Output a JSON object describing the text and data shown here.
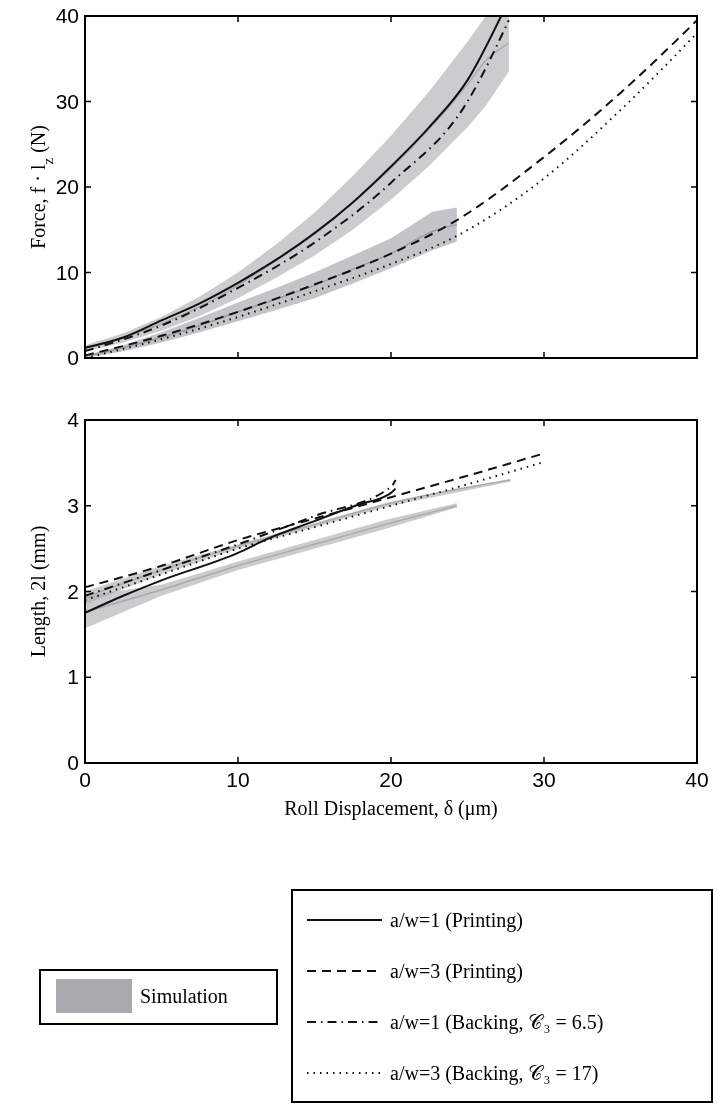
{
  "chart_data": [
    {
      "type": "line",
      "ylabel": "Force, f · l$_{z}$ (N)",
      "xlim": [
        0,
        40
      ],
      "xticks": [
        0,
        10,
        20,
        30,
        40
      ],
      "ylim": [
        0,
        40
      ],
      "yticks": [
        0,
        10,
        20,
        30,
        40
      ],
      "tick_labels": "y",
      "grid": false,
      "legend": "bottom",
      "series": [
        {
          "name": "Simulation",
          "type": "line",
          "color": "#a9aaae",
          "x": [
            0,
            2.5,
            5,
            7.5,
            10,
            12.5,
            15,
            17.5,
            20,
            22.5,
            25,
            26.2,
            27.7
          ],
          "values": [
            1.2,
            2.4,
            4,
            6,
            8.5,
            11.4,
            14.5,
            18.2,
            22.2,
            26.8,
            32,
            34.8,
            36.8
          ],
          "lower": [
            0.8,
            1.8,
            3.2,
            4.9,
            7,
            9.4,
            12,
            15,
            18.5,
            22.5,
            27,
            29.5,
            33.5
          ],
          "upper": [
            1.5,
            2.9,
            4.8,
            7.2,
            10,
            13.3,
            17,
            21.3,
            26,
            31.2,
            37,
            40,
            40
          ]
        },
        {
          "type": "line",
          "color": "#9c9da3",
          "x": [
            0,
            2.5,
            5,
            7.5,
            10,
            12.5,
            15,
            17.5,
            20,
            22.7,
            24.3
          ],
          "values": [
            0.2,
            1.2,
            2.4,
            3.8,
            5.4,
            6.9,
            8.5,
            10.4,
            12.2,
            14.8,
            15.6
          ],
          "lower": [
            0,
            0.8,
            1.8,
            3,
            4.3,
            5.6,
            7,
            8.7,
            10.5,
            12.6,
            13.6
          ],
          "upper": [
            0.3,
            1.5,
            3,
            4.7,
            6.5,
            8.2,
            10,
            12,
            14,
            17.1,
            17.6
          ]
        },
        {
          "name": "a/w=1 (Printing)",
          "color": "#111111",
          "line_style": "solid",
          "x": [
            0,
            2.5,
            5,
            7.5,
            10,
            12.5,
            15,
            17.5,
            20,
            22.5,
            25,
            27.2
          ],
          "values": [
            1.2,
            2.4,
            4.4,
            6.4,
            8.8,
            11.5,
            14.6,
            18.2,
            22.4,
            27,
            32.5,
            40
          ]
        },
        {
          "name": "a/w=3 (Printing)",
          "color": "#111111",
          "line_style": "dashed",
          "x": [
            0,
            5,
            10,
            15,
            20,
            24,
            30,
            35,
            40
          ],
          "values": [
            0.3,
            2.6,
            5.4,
            8.6,
            12.2,
            15.8,
            23.5,
            31,
            39.5
          ]
        },
        {
          "name": "a/w=1 (Backing, 𝒞₃ = 6.5)",
          "color": "#111111",
          "line_style": "dashdot",
          "x": [
            0,
            5,
            10,
            15,
            20,
            25,
            27.7
          ],
          "values": [
            0.8,
            3.8,
            8.2,
            13.5,
            20.5,
            30,
            39.5
          ]
        },
        {
          "name": "a/w=3 (Backing, 𝒞₃ = 17)",
          "color": "#111111",
          "line_style": "dotted",
          "x": [
            0,
            5,
            10,
            15,
            20,
            24,
            30,
            35,
            40
          ],
          "values": [
            0,
            2.2,
            4.8,
            7.8,
            11,
            14,
            21,
            29,
            38
          ]
        }
      ]
    },
    {
      "type": "line",
      "xlabel": "Roll Displacement, δ (μm)",
      "ylabel": "Length, 2l (mm)",
      "xlim": [
        0,
        40
      ],
      "xticks": [
        0,
        10,
        20,
        30,
        40
      ],
      "ylim": [
        0,
        4
      ],
      "yticks": [
        0,
        1,
        2,
        3,
        4
      ],
      "grid": false,
      "series": [
        {
          "type": "line",
          "color": "#a9aaae",
          "x": [
            0,
            5,
            10,
            15,
            20,
            24.3
          ],
          "values": [
            1.76,
            2.02,
            2.3,
            2.55,
            2.8,
            3.0
          ],
          "lower": [
            1.57,
            1.95,
            2.25,
            2.5,
            2.75,
            2.98
          ],
          "upper": [
            1.95,
            2.08,
            2.35,
            2.6,
            2.85,
            3.03
          ]
        },
        {
          "type": "line",
          "color": "#a9aaae",
          "x": [
            0,
            5,
            10,
            15,
            20,
            27.8
          ],
          "values": [
            1.93,
            2.25,
            2.53,
            2.78,
            3.03,
            3.3
          ],
          "lower": [
            1.85,
            2.2,
            2.5,
            2.75,
            3.0,
            3.28
          ],
          "upper": [
            2.0,
            2.3,
            2.55,
            2.8,
            3.05,
            3.31
          ]
        },
        {
          "name": "a/w=1 (Printing)",
          "color": "#111111",
          "line_style": "solid",
          "x": [
            0,
            2.5,
            5,
            10,
            12,
            15,
            18,
            19.5,
            20,
            20.3
          ],
          "values": [
            1.75,
            1.95,
            2.13,
            2.45,
            2.62,
            2.82,
            3.02,
            3.1,
            3.15,
            3.2
          ]
        },
        {
          "name": "a/w=3 (Printing)",
          "color": "#111111",
          "line_style": "dashed",
          "x": [
            0,
            5,
            10,
            15,
            20,
            25,
            29.8
          ],
          "values": [
            2.05,
            2.3,
            2.6,
            2.85,
            3.1,
            3.35,
            3.6
          ]
        },
        {
          "name": "a/w=1 (Backing, 𝒞₃ = 6.5)",
          "color": "#111111",
          "line_style": "dashdot",
          "x": [
            0,
            5,
            10,
            15,
            20,
            20.3
          ],
          "values": [
            1.95,
            2.25,
            2.55,
            2.88,
            3.22,
            3.3
          ]
        },
        {
          "name": "a/w=3 (Backing, 𝒞₃ = 17)",
          "color": "#111111",
          "line_style": "dotted",
          "x": [
            0,
            5,
            10,
            15,
            20,
            25,
            29.8
          ],
          "values": [
            1.9,
            2.2,
            2.5,
            2.75,
            3.0,
            3.25,
            3.5
          ]
        }
      ]
    }
  ]
}
